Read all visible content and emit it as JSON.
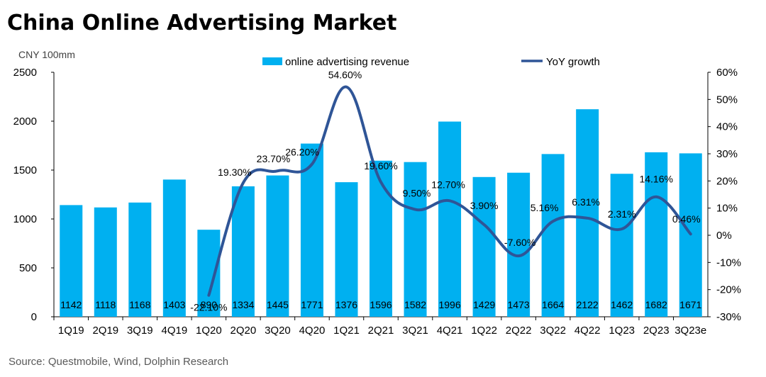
{
  "title": "China Online Advertising Market",
  "source": "Source:   Questmobile, Wind, Dolphin Research",
  "chart_data": {
    "type": "bar",
    "categories": [
      "1Q19",
      "2Q19",
      "3Q19",
      "4Q19",
      "1Q20",
      "2Q20",
      "3Q20",
      "4Q20",
      "1Q21",
      "2Q21",
      "3Q21",
      "4Q21",
      "1Q22",
      "2Q22",
      "3Q22",
      "4Q22",
      "1Q23",
      "2Q23",
      "3Q23e"
    ],
    "series": [
      {
        "name": "online advertising revenue",
        "type": "bar",
        "axis": "left",
        "color": "#00B0F0",
        "values": [
          1142,
          1118,
          1168,
          1403,
          890,
          1334,
          1445,
          1771,
          1376,
          1596,
          1582,
          1996,
          1429,
          1473,
          1664,
          2122,
          1462,
          1682,
          1671
        ],
        "labels": [
          "1142",
          "1118",
          "1168",
          "1403",
          "890",
          "1334",
          "1445",
          "1771",
          "1376",
          "1596",
          "1582",
          "1996",
          "1429",
          "1473",
          "1664",
          "2122",
          "1462",
          "1682",
          "1671"
        ]
      },
      {
        "name": "YoY growth",
        "type": "line",
        "axis": "right",
        "color": "#2F5597",
        "values": [
          null,
          null,
          null,
          null,
          -22.1,
          19.3,
          23.7,
          26.2,
          54.6,
          19.6,
          9.5,
          12.7,
          3.9,
          -7.6,
          5.16,
          6.31,
          2.31,
          14.16,
          0.46
        ],
        "labels": [
          "",
          "",
          "",
          "",
          "-22.10%",
          "19.30%",
          "23.70%",
          "26.20%",
          "54.60%",
          "19.60%",
          "9.50%",
          "12.70%",
          "3.90%",
          "-7.60%",
          "5.16%",
          "6.31%",
          "2.31%",
          "14.16%",
          "0.46%"
        ]
      }
    ],
    "ylabel": "CNY 100mm",
    "ylim": [
      0,
      2500
    ],
    "yticks": [
      "0",
      "500",
      "1000",
      "1500",
      "2000",
      "2500"
    ],
    "y2lim": [
      -30,
      60
    ],
    "y2ticks": [
      "-30%",
      "-20%",
      "-10%",
      "0%",
      "10%",
      "20%",
      "30%",
      "40%",
      "50%",
      "60%"
    ],
    "grid": false,
    "legend": "top-center"
  }
}
